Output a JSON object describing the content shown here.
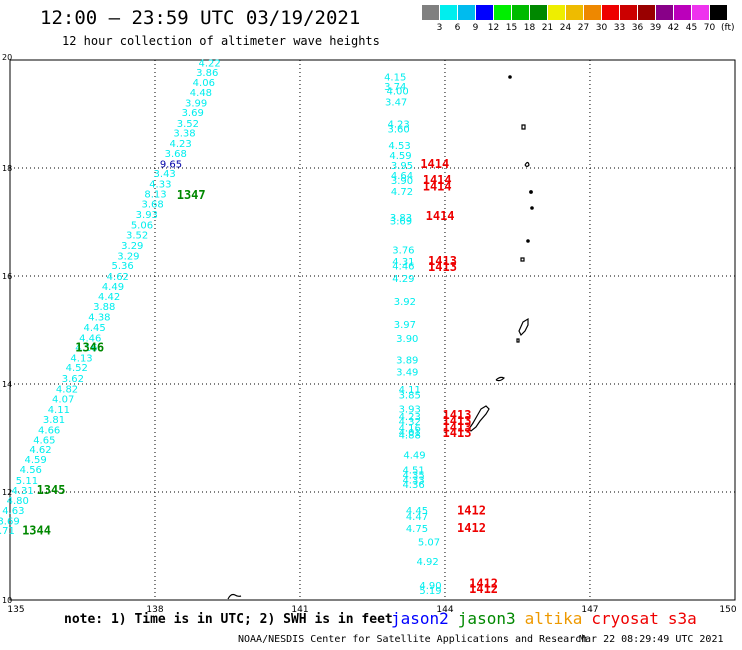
{
  "header": {
    "title": "12:00 – 23:59 UTC 03/19/2021",
    "subtitle": "12 hour collection of altimeter wave heights"
  },
  "legend": {
    "colors": [
      "#808080",
      "#00eeee",
      "#00bbee",
      "#0000ff",
      "#00ee00",
      "#00bb00",
      "#008800",
      "#eeee00",
      "#eebb00",
      "#ee8800",
      "#ee0000",
      "#cc0000",
      "#990000",
      "#880088",
      "#bb00bb",
      "#ee33ee",
      "#000000"
    ],
    "labels": [
      "3",
      "6",
      "9",
      "12",
      "15",
      "18",
      "21",
      "24",
      "27",
      "30",
      "33",
      "36",
      "39",
      "42",
      "45",
      "70"
    ],
    "unit": "(ft)"
  },
  "axes": {
    "lon_ticks": [
      "135",
      "138",
      "141",
      "144",
      "147",
      "150"
    ],
    "lat_ticks": [
      "20",
      "18",
      "16",
      "14",
      "12",
      "10"
    ]
  },
  "tracks": [
    {
      "points": [
        {
          "lat": 19.88,
          "lon": 138.9,
          "v": "4.22"
        },
        {
          "lat": 19.7,
          "lon": 138.85,
          "v": "3.86"
        },
        {
          "lat": 19.52,
          "lon": 138.78,
          "v": "4.06"
        },
        {
          "lat": 19.33,
          "lon": 138.72,
          "v": "4.48"
        },
        {
          "lat": 19.14,
          "lon": 138.62,
          "v": "3.99"
        },
        {
          "lat": 18.96,
          "lon": 138.55,
          "v": "3.69"
        },
        {
          "lat": 18.76,
          "lon": 138.45,
          "v": "3.52"
        },
        {
          "lat": 18.58,
          "lon": 138.38,
          "v": "3.38"
        },
        {
          "lat": 18.39,
          "lon": 138.3,
          "v": "4.23"
        },
        {
          "lat": 18.2,
          "lon": 138.2,
          "v": "3.68"
        },
        {
          "lat": 18.01,
          "lon": 138.1,
          "v": "9.65"
        },
        {
          "lat": 17.83,
          "lon": 137.97,
          "v": "3.43"
        },
        {
          "lat": 17.64,
          "lon": 137.88,
          "v": "4.33"
        },
        {
          "lat": 17.45,
          "lon": 137.78,
          "v": "8.13"
        },
        {
          "lat": 17.27,
          "lon": 137.72,
          "v": "3.68"
        },
        {
          "lat": 17.07,
          "lon": 137.6,
          "v": "3.93"
        },
        {
          "lat": 16.88,
          "lon": 137.5,
          "v": "5.06"
        },
        {
          "lat": 16.69,
          "lon": 137.4,
          "v": "3.52"
        },
        {
          "lat": 16.5,
          "lon": 137.3,
          "v": "3.29"
        },
        {
          "lat": 16.31,
          "lon": 137.22,
          "v": "3.29"
        },
        {
          "lat": 16.13,
          "lon": 137.1,
          "v": "5.36"
        },
        {
          "lat": 15.93,
          "lon": 137.0,
          "v": "4.62"
        },
        {
          "lat": 15.74,
          "lon": 136.9,
          "v": "4.49"
        },
        {
          "lat": 15.56,
          "lon": 136.82,
          "v": "4.42"
        },
        {
          "lat": 15.37,
          "lon": 136.72,
          "v": "3.88"
        },
        {
          "lat": 15.18,
          "lon": 136.62,
          "v": "4.38"
        },
        {
          "lat": 14.98,
          "lon": 136.52,
          "v": "4.45"
        },
        {
          "lat": 14.79,
          "lon": 136.43,
          "v": "4.46"
        },
        {
          "lat": 14.61,
          "lon": 136.35,
          "v": "4.16"
        },
        {
          "lat": 14.42,
          "lon": 136.25,
          "v": "4.13"
        },
        {
          "lat": 14.24,
          "lon": 136.15,
          "v": "4.52"
        },
        {
          "lat": 14.04,
          "lon": 136.07,
          "v": "3.62"
        },
        {
          "lat": 13.84,
          "lon": 135.95,
          "v": "4.82"
        },
        {
          "lat": 13.66,
          "lon": 135.87,
          "v": "4.07"
        },
        {
          "lat": 13.46,
          "lon": 135.78,
          "v": "4.11"
        },
        {
          "lat": 13.28,
          "lon": 135.68,
          "v": "3.81"
        },
        {
          "lat": 13.08,
          "lon": 135.58,
          "v": "4.66"
        },
        {
          "lat": 12.9,
          "lon": 135.48,
          "v": "4.65"
        },
        {
          "lat": 12.72,
          "lon": 135.4,
          "v": "4.62"
        },
        {
          "lat": 12.54,
          "lon": 135.3,
          "v": "4.59"
        },
        {
          "lat": 12.35,
          "lon": 135.2,
          "v": "4.56"
        },
        {
          "lat": 12.15,
          "lon": 135.12,
          "v": "5.11"
        },
        {
          "lat": 11.96,
          "lon": 135.03,
          "v": "4.31"
        },
        {
          "lat": 11.78,
          "lon": 134.93,
          "v": "4.80"
        },
        {
          "lat": 11.59,
          "lon": 134.84,
          "v": "4.63"
        },
        {
          "lat": 11.4,
          "lon": 134.74,
          "v": "3.69"
        },
        {
          "lat": 11.22,
          "lon": 134.64,
          "v": "3.71"
        }
      ]
    },
    {
      "points": [
        {
          "lat": 19.62,
          "lon": 142.74,
          "v": "4.15"
        },
        {
          "lat": 19.44,
          "lon": 142.74,
          "v": "3.74"
        },
        {
          "lat": 19.36,
          "lon": 142.79,
          "v": "4.00"
        },
        {
          "lat": 19.16,
          "lon": 142.76,
          "v": "3.47"
        },
        {
          "lat": 18.75,
          "lon": 142.81,
          "v": "4.23"
        },
        {
          "lat": 18.66,
          "lon": 142.81,
          "v": "3.60"
        },
        {
          "lat": 18.35,
          "lon": 142.83,
          "v": "4.53"
        },
        {
          "lat": 18.17,
          "lon": 142.85,
          "v": "4.59"
        },
        {
          "lat": 17.98,
          "lon": 142.88,
          "v": "3.95"
        },
        {
          "lat": 17.8,
          "lon": 142.88,
          "v": "4.64"
        },
        {
          "lat": 17.7,
          "lon": 142.88,
          "v": "3.90"
        },
        {
          "lat": 17.5,
          "lon": 142.88,
          "v": "4.72"
        },
        {
          "lat": 17.02,
          "lon": 142.86,
          "v": "3.83"
        },
        {
          "lat": 16.95,
          "lon": 142.86,
          "v": "3.69"
        },
        {
          "lat": 16.42,
          "lon": 142.91,
          "v": "3.76"
        },
        {
          "lat": 16.2,
          "lon": 142.91,
          "v": "4.31"
        },
        {
          "lat": 16.12,
          "lon": 142.91,
          "v": "4.46"
        },
        {
          "lat": 15.89,
          "lon": 142.91,
          "v": "4.29"
        },
        {
          "lat": 15.46,
          "lon": 142.94,
          "v": "3.92"
        },
        {
          "lat": 15.04,
          "lon": 142.94,
          "v": "3.97"
        },
        {
          "lat": 14.78,
          "lon": 142.99,
          "v": "3.90"
        },
        {
          "lat": 14.38,
          "lon": 142.99,
          "v": "3.89"
        },
        {
          "lat": 14.16,
          "lon": 142.99,
          "v": "3.49"
        },
        {
          "lat": 13.83,
          "lon": 143.04,
          "v": "4.11"
        },
        {
          "lat": 13.73,
          "lon": 143.04,
          "v": "3.85"
        },
        {
          "lat": 13.47,
          "lon": 143.04,
          "v": "3.93"
        },
        {
          "lat": 13.33,
          "lon": 143.04,
          "v": "4.23"
        },
        {
          "lat": 13.24,
          "lon": 143.04,
          "v": "4.32"
        },
        {
          "lat": 13.12,
          "lon": 143.04,
          "v": "4.16"
        },
        {
          "lat": 13.04,
          "lon": 143.04,
          "v": "4.01"
        },
        {
          "lat": 12.99,
          "lon": 143.04,
          "v": "4.88"
        },
        {
          "lat": 12.62,
          "lon": 143.14,
          "v": "4.49"
        },
        {
          "lat": 12.34,
          "lon": 143.12,
          "v": "4.51"
        },
        {
          "lat": 12.25,
          "lon": 143.12,
          "v": "4.35"
        },
        {
          "lat": 12.16,
          "lon": 143.12,
          "v": "4.33"
        },
        {
          "lat": 12.07,
          "lon": 143.12,
          "v": "4.36"
        },
        {
          "lat": 11.59,
          "lon": 143.19,
          "v": "4.45"
        },
        {
          "lat": 11.48,
          "lon": 143.19,
          "v": "4.47"
        },
        {
          "lat": 11.26,
          "lon": 143.19,
          "v": "4.75"
        },
        {
          "lat": 11.01,
          "lon": 143.44,
          "v": "5.07"
        },
        {
          "lat": 10.65,
          "lon": 143.41,
          "v": "4.92"
        },
        {
          "lat": 10.2,
          "lon": 143.47,
          "v": "4.90"
        },
        {
          "lat": 10.11,
          "lon": 143.47,
          "v": "5.19"
        }
      ]
    }
  ],
  "flag": {
    "v": "9.65",
    "lat": 18.01,
    "lon": 138.1
  },
  "time_labels": [
    {
      "sat": "jason3",
      "v": "1347",
      "lat": 17.43,
      "lon": 138.45
    },
    {
      "sat": "jason3",
      "v": "1346",
      "lat": 14.6,
      "lon": 136.35
    },
    {
      "sat": "jason3",
      "v": "1345",
      "lat": 11.96,
      "lon": 135.55
    },
    {
      "sat": "jason3",
      "v": "1344",
      "lat": 11.21,
      "lon": 135.25
    },
    {
      "sat": "cryosat",
      "v": "1414",
      "lat": 18.0,
      "lon": 143.49
    },
    {
      "sat": "cryosat",
      "v": "1414",
      "lat": 17.7,
      "lon": 143.54
    },
    {
      "sat": "cryosat",
      "v": "1414",
      "lat": 17.58,
      "lon": 143.54
    },
    {
      "sat": "cryosat",
      "v": "1414",
      "lat": 17.04,
      "lon": 143.6
    },
    {
      "sat": "cryosat",
      "v": "1413",
      "lat": 16.2,
      "lon": 143.65
    },
    {
      "sat": "cryosat",
      "v": "1413",
      "lat": 16.09,
      "lon": 143.65
    },
    {
      "sat": "cryosat",
      "v": "1413",
      "lat": 13.35,
      "lon": 143.95
    },
    {
      "sat": "cryosat",
      "v": "1413",
      "lat": 13.24,
      "lon": 143.95
    },
    {
      "sat": "cryosat",
      "v": "1413",
      "lat": 13.12,
      "lon": 143.95
    },
    {
      "sat": "cryosat",
      "v": "1413",
      "lat": 13.02,
      "lon": 143.95
    },
    {
      "sat": "cryosat",
      "v": "1412",
      "lat": 11.58,
      "lon": 144.25
    },
    {
      "sat": "cryosat",
      "v": "1412",
      "lat": 11.26,
      "lon": 144.25
    },
    {
      "sat": "cryosat",
      "v": "1412",
      "lat": 10.23,
      "lon": 144.5
    },
    {
      "sat": "cryosat",
      "v": "1412",
      "lat": 10.13,
      "lon": 144.5
    }
  ],
  "sat_colors": {
    "jason2": "#0000ff",
    "jason3": "#008800",
    "altika": "#ee9900",
    "cryosat": "#ee0000",
    "track": "#00eeee",
    "flag": "#0000aa"
  },
  "footer": {
    "note": "note: 1) Time is in UTC; 2) SWH is in feet",
    "sats": [
      "jason2",
      "jason3",
      "altika",
      "cryosat",
      "s3a"
    ],
    "sat_keys": [
      "jason2",
      "jason3",
      "altika",
      "cryosat",
      "cryosat"
    ],
    "credit": "NOAA/NESDIS Center for Satellite Applications and Research",
    "stamp": "Mar 22 08:29:49 UTC 2021"
  }
}
